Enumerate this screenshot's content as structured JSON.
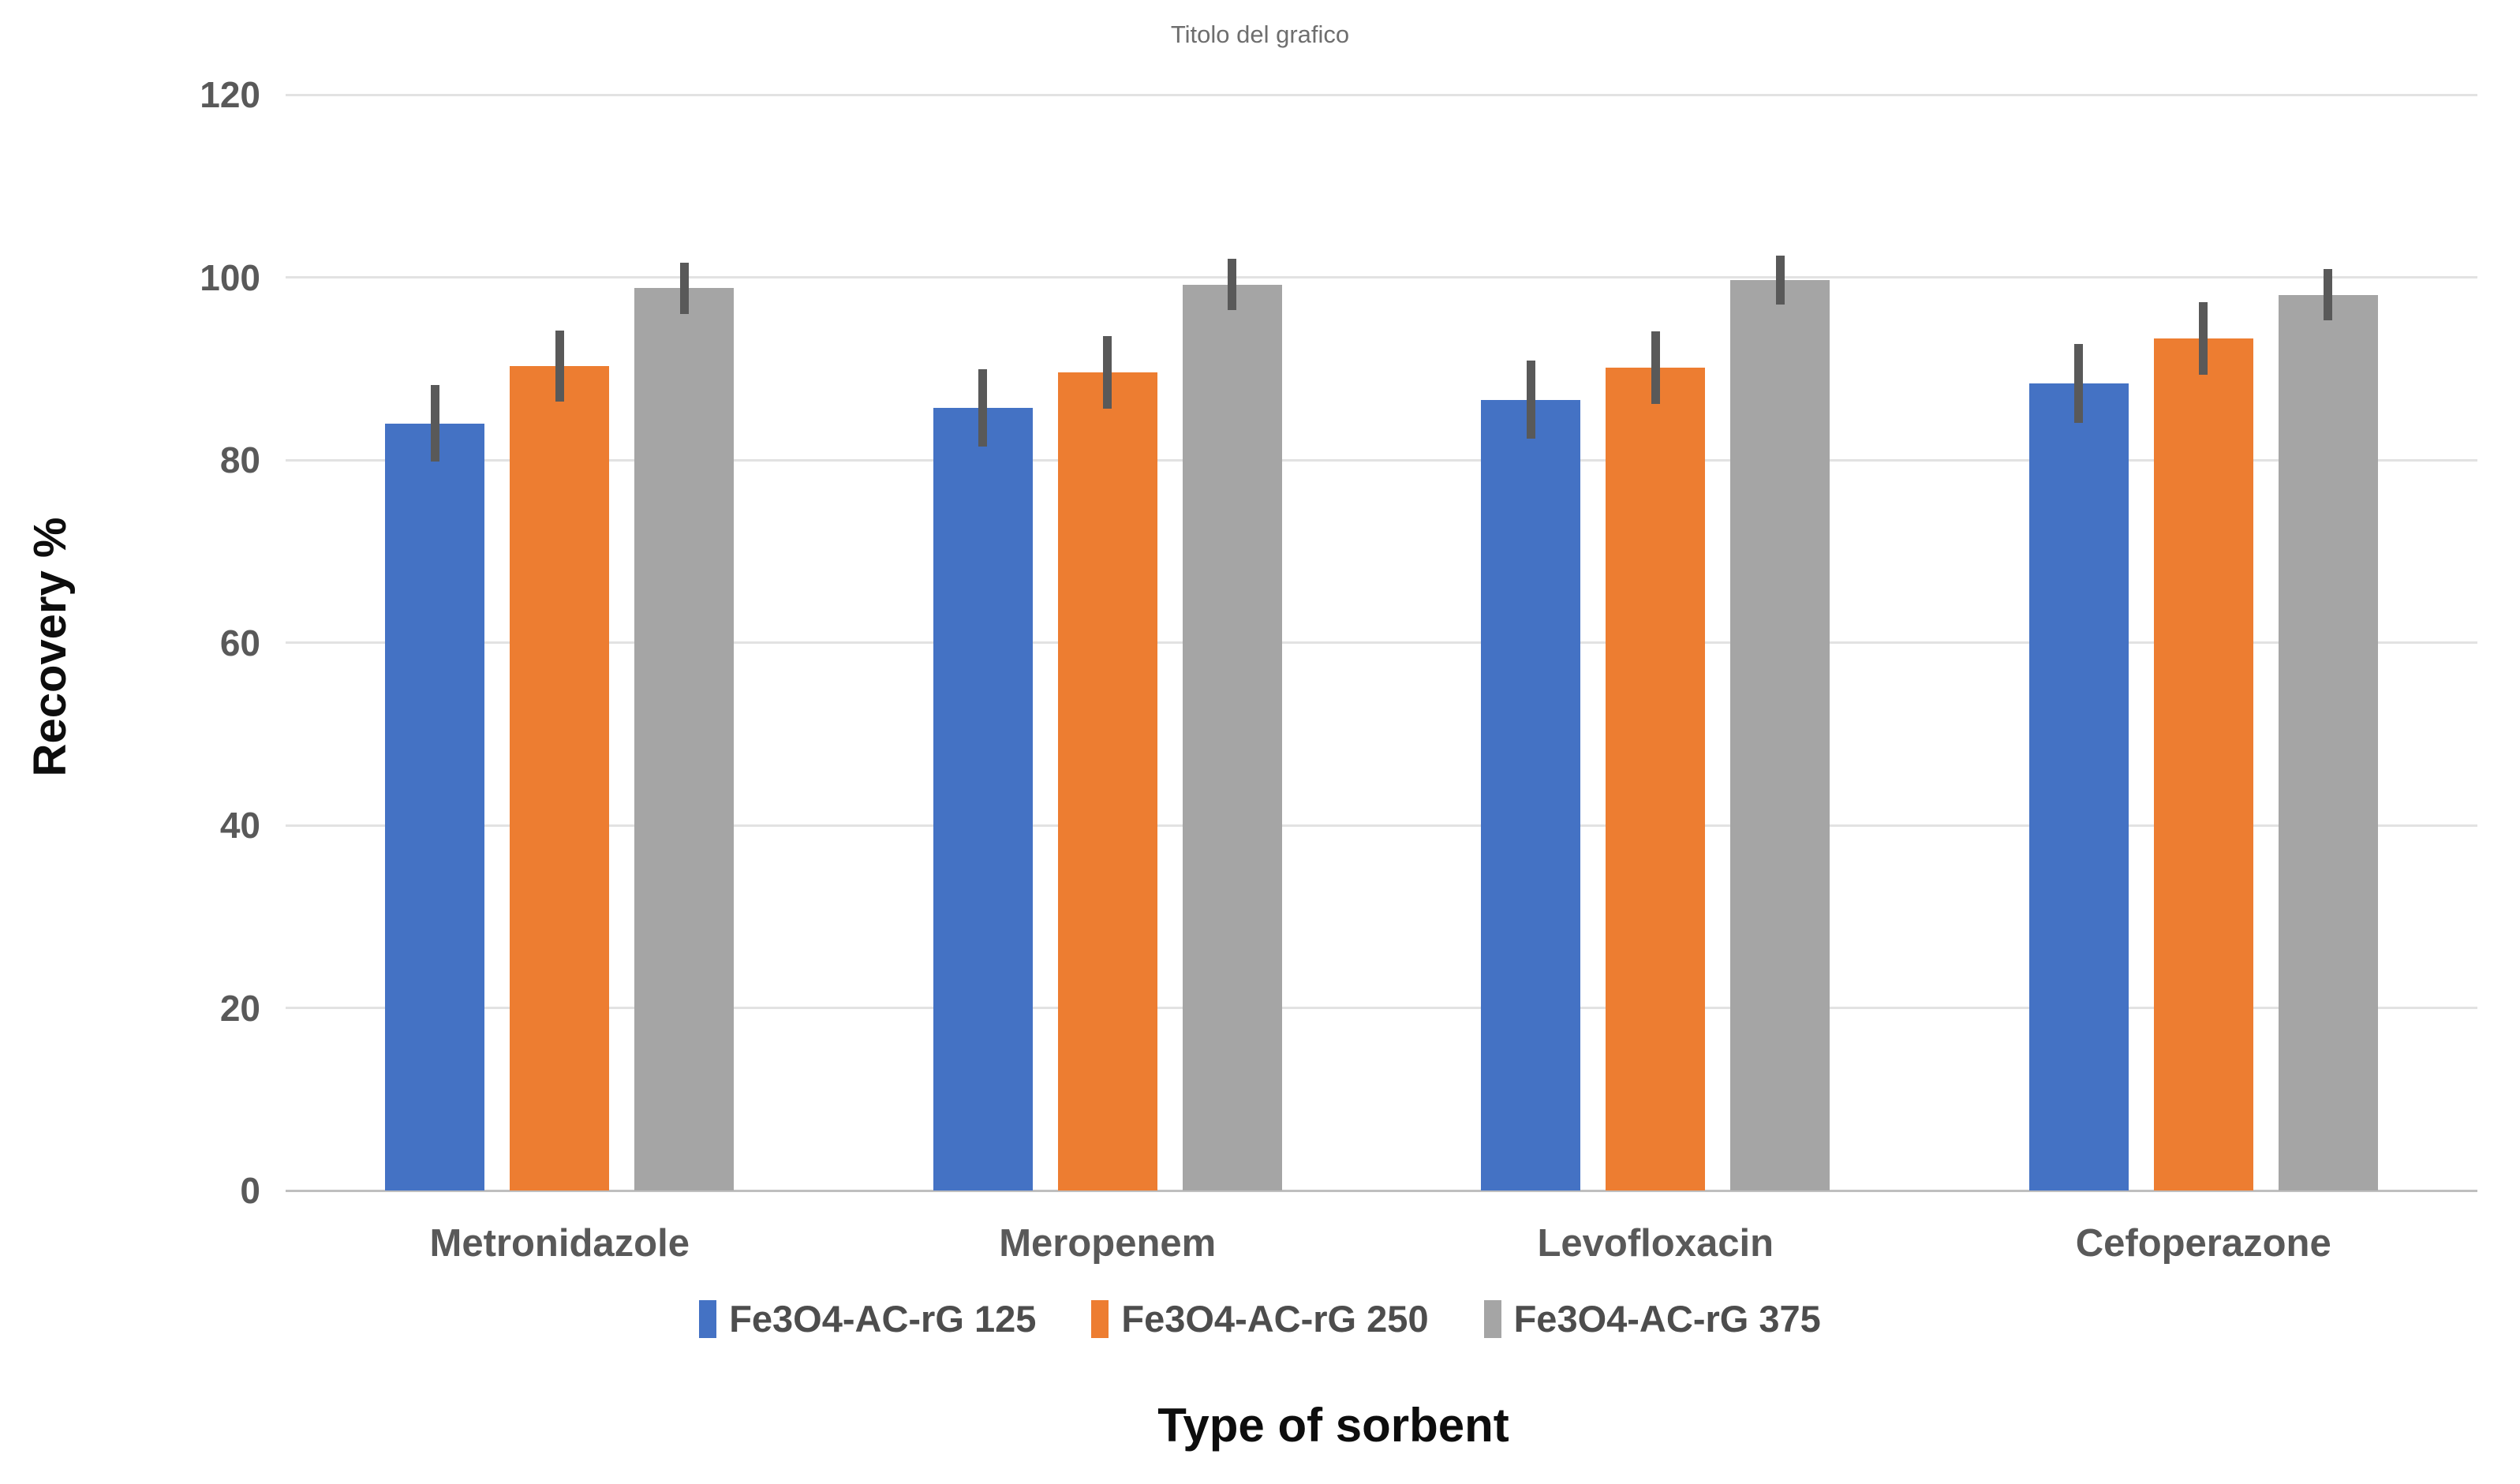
{
  "chart_data": {
    "type": "bar",
    "title": "Titolo del grafico",
    "xlabel": "Type of sorbent",
    "ylabel": "Recovery %",
    "ylim": [
      0,
      120
    ],
    "ytick_step": 20,
    "yticks": [
      0,
      20,
      40,
      60,
      80,
      100,
      120
    ],
    "grid": true,
    "legend_position": "bottom",
    "categories": [
      "Metronidazole",
      "Meropenem",
      "Levofloxacin",
      "Cefoperazone"
    ],
    "series": [
      {
        "name": "Fe3O4-AC-rG 125",
        "color": "#4472C4",
        "values": [
          84.0,
          85.7,
          86.6,
          88.4
        ],
        "error_bars": [
          4.2,
          4.2,
          4.3,
          4.3
        ]
      },
      {
        "name": "Fe3O4-AC-rG 250",
        "color": "#ED7D31",
        "values": [
          90.3,
          89.6,
          90.1,
          93.3
        ],
        "error_bars": [
          3.9,
          4.0,
          4.0,
          4.0
        ]
      },
      {
        "name": "Fe3O4-AC-rG 375",
        "color": "#A5A5A5",
        "values": [
          98.8,
          99.2,
          99.7,
          98.1
        ],
        "error_bars": [
          2.8,
          2.8,
          2.7,
          2.8
        ]
      }
    ],
    "error_bar_color": "#595959",
    "gridline_color": "#e2e2e2",
    "axis_line_color": "#bfbfbf",
    "background_color": "#ffffff"
  }
}
